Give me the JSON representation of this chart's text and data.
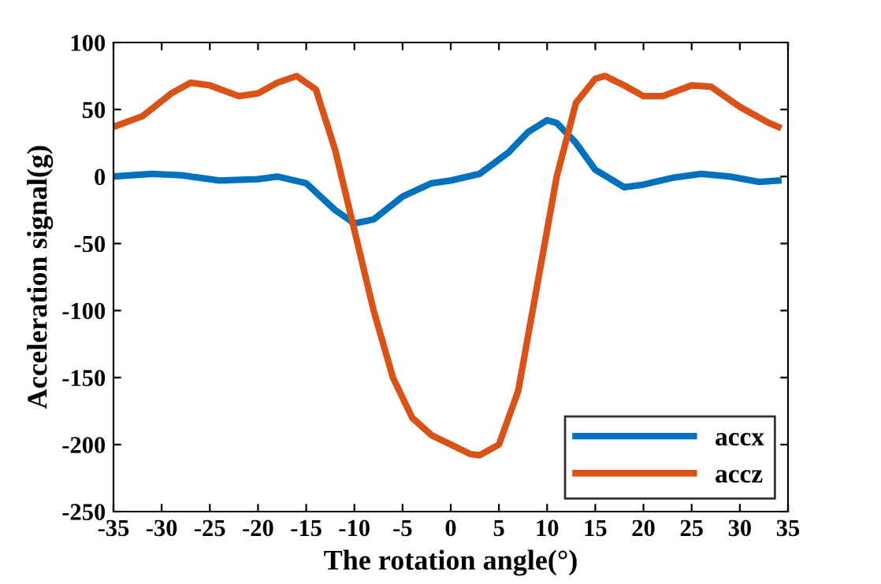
{
  "chart_data": {
    "type": "line",
    "xlabel": "The rotation angle(°)",
    "ylabel": "Acceleration signal(g)",
    "xlim": [
      -35,
      35
    ],
    "xticks": [
      -35,
      -30,
      -25,
      -20,
      -15,
      -10,
      -5,
      0,
      5,
      10,
      15,
      20,
      25,
      30,
      35
    ],
    "ylim": [
      -250,
      100
    ],
    "yticks": [
      -250,
      -200,
      -150,
      -100,
      -50,
      0,
      50,
      100
    ],
    "grid": false,
    "legend": "bottom right",
    "marker": "none",
    "line_style": "solid",
    "series": [
      {
        "name": "accx",
        "color": "#0072bd",
        "x": [
          -35,
          -31,
          -28,
          -24,
          -20,
          -18,
          -15,
          -12,
          -10,
          -8,
          -5,
          -2,
          0,
          3,
          6,
          8,
          10,
          11,
          13,
          15,
          18,
          20,
          23,
          26,
          29,
          32,
          34
        ],
        "values": [
          0,
          2,
          1,
          -3,
          -2,
          0,
          -5,
          -25,
          -35,
          -32,
          -15,
          -5,
          -3,
          2,
          18,
          33,
          42,
          40,
          25,
          5,
          -8,
          -6,
          -1,
          2,
          0,
          -4,
          -3
        ]
      },
      {
        "name": "accz",
        "color": "#d95319",
        "x": [
          -35,
          -32,
          -29,
          -27,
          -25,
          -22,
          -20,
          -18,
          -16,
          -14,
          -12,
          -10,
          -8,
          -6,
          -4,
          -2,
          0,
          2,
          3,
          5,
          7,
          9,
          11,
          13,
          15,
          16,
          18,
          20,
          22,
          25,
          27,
          30,
          33,
          34
        ],
        "values": [
          37,
          45,
          62,
          70,
          68,
          60,
          62,
          70,
          75,
          65,
          20,
          -40,
          -100,
          -150,
          -180,
          -193,
          -200,
          -207,
          -208,
          -200,
          -160,
          -80,
          0,
          55,
          73,
          75,
          68,
          60,
          60,
          68,
          67,
          52,
          40,
          37
        ]
      }
    ]
  }
}
